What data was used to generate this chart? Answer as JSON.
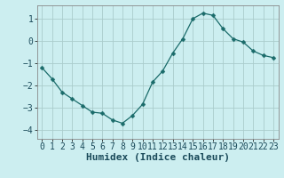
{
  "title": "",
  "xlabel": "Humidex (Indice chaleur)",
  "ylabel": "",
  "background_color": "#cceef0",
  "grid_color": "#aacccc",
  "line_color": "#1a6b6a",
  "marker_color": "#1a6b6a",
  "xlim": [
    -0.5,
    23.5
  ],
  "ylim": [
    -4.4,
    1.6
  ],
  "yticks": [
    -4,
    -3,
    -2,
    -1,
    0,
    1
  ],
  "xticks": [
    0,
    1,
    2,
    3,
    4,
    5,
    6,
    7,
    8,
    9,
    10,
    11,
    12,
    13,
    14,
    15,
    16,
    17,
    18,
    19,
    20,
    21,
    22,
    23
  ],
  "x": [
    0,
    1,
    2,
    3,
    4,
    5,
    6,
    7,
    8,
    9,
    10,
    11,
    12,
    13,
    14,
    15,
    16,
    17,
    18,
    19,
    20,
    21,
    22,
    23
  ],
  "y": [
    -1.2,
    -1.7,
    -2.3,
    -2.6,
    -2.9,
    -3.2,
    -3.25,
    -3.55,
    -3.7,
    -3.35,
    -2.85,
    -1.85,
    -1.35,
    -0.55,
    0.1,
    1.0,
    1.25,
    1.15,
    0.55,
    0.1,
    -0.05,
    -0.45,
    -0.65,
    -0.75
  ],
  "marker_size": 2.5,
  "line_width": 0.9,
  "font_size": 7,
  "label_font_size": 8
}
